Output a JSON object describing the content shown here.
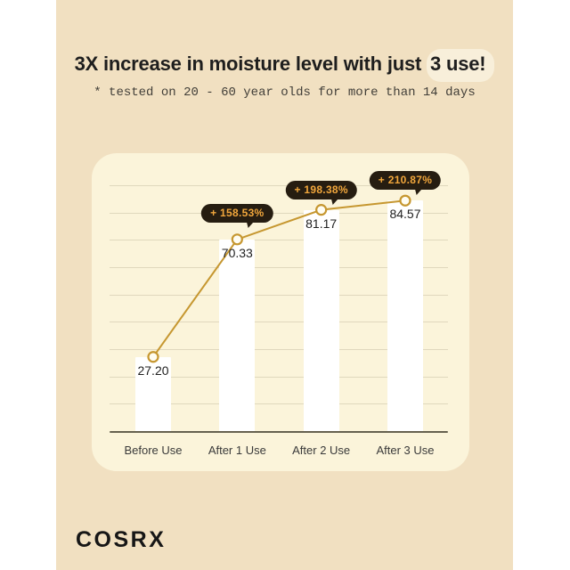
{
  "header": {
    "title_prefix": "3X increase in moisture level with just ",
    "title_highlight": "3 use!",
    "subtitle": "* tested on 20 - 60 year olds for more than 14 days"
  },
  "footer": {
    "brand": "COSRX"
  },
  "colors": {
    "card_bg": "#F1E0C1",
    "panel_bg": "#FBF4DA",
    "bar_fill": "#FFFFFF",
    "accent_gold": "#C69730",
    "marker_fill": "#FFFDF2",
    "badge_bg": "#261D11",
    "badge_text": "#F2A73C",
    "baseline": "#66614F",
    "title_text": "#1E1E1E",
    "label_text": "#3A3A3A"
  },
  "chart_data": {
    "type": "bar",
    "overlay": "line-with-markers",
    "title": "3X increase in moisture level with just 3 use!",
    "subtitle": "* tested on 20 - 60 year olds for more than 14 days",
    "categories": [
      "Before Use",
      "After 1 Use",
      "After 2 Use",
      "After 3 Use"
    ],
    "values": [
      27.2,
      70.33,
      81.17,
      84.57
    ],
    "value_labels": [
      "27.20",
      "70.33",
      "81.17",
      "84.57"
    ],
    "badges": [
      "",
      "+ 158.53%",
      "+ 198.38%",
      "+ 210.87%"
    ],
    "xlabel": "",
    "ylabel": "",
    "ylim": [
      0,
      100
    ],
    "grid": true,
    "legend": false
  }
}
